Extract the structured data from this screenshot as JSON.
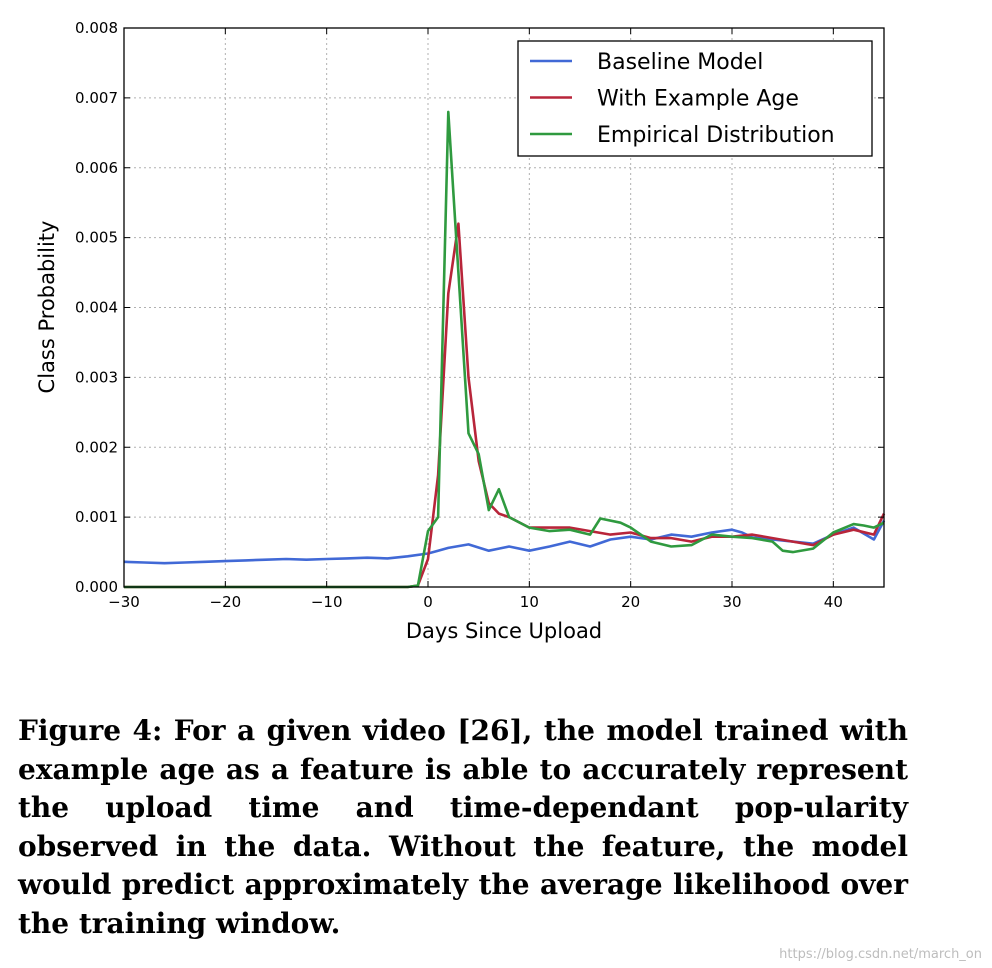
{
  "chart_data": {
    "type": "line",
    "title": "",
    "xlabel": "Days Since Upload",
    "ylabel": "Class Probability",
    "xlim": [
      -30,
      45
    ],
    "ylim": [
      0,
      0.008
    ],
    "xticks": [
      -30,
      -20,
      -10,
      0,
      10,
      20,
      30,
      40
    ],
    "xtick_labels": [
      "−30",
      "−20",
      "−10",
      "0",
      "10",
      "20",
      "30",
      "40"
    ],
    "yticks": [
      0,
      0.001,
      0.002,
      0.003,
      0.004,
      0.005,
      0.006,
      0.007,
      0.008
    ],
    "ytick_labels": [
      "0.000",
      "0.001",
      "0.002",
      "0.003",
      "0.004",
      "0.005",
      "0.006",
      "0.007",
      "0.008"
    ],
    "grid": true,
    "legend_position": "top-right",
    "series": [
      {
        "name": "Baseline Model",
        "color": "#4169d6",
        "x": [
          -30,
          -28,
          -26,
          -24,
          -22,
          -20,
          -18,
          -16,
          -14,
          -12,
          -10,
          -8,
          -6,
          -4,
          -2,
          0,
          1,
          2,
          4,
          6,
          7,
          8,
          10,
          12,
          14,
          16,
          18,
          20,
          22,
          24,
          26,
          28,
          30,
          31,
          32,
          34,
          36,
          38,
          40,
          42,
          44,
          45
        ],
        "y": [
          0.00036,
          0.00035,
          0.00034,
          0.00035,
          0.00036,
          0.00037,
          0.00038,
          0.00039,
          0.0004,
          0.00039,
          0.0004,
          0.00041,
          0.00042,
          0.00041,
          0.00044,
          0.00048,
          0.00052,
          0.00056,
          0.00061,
          0.00052,
          0.00055,
          0.00058,
          0.00052,
          0.00058,
          0.00065,
          0.00058,
          0.00068,
          0.00072,
          0.00068,
          0.00075,
          0.00072,
          0.00078,
          0.00082,
          0.00078,
          0.00071,
          0.00068,
          0.00065,
          0.00062,
          0.00075,
          0.00085,
          0.00068,
          0.00095
        ]
      },
      {
        "name": "With Example Age",
        "color": "#b8253a",
        "x": [
          -30,
          -25,
          -20,
          -15,
          -10,
          -5,
          -2,
          -1,
          0,
          1,
          2,
          3,
          4,
          5,
          6,
          7,
          8,
          10,
          12,
          14,
          16,
          18,
          20,
          22,
          24,
          26,
          28,
          30,
          32,
          34,
          36,
          38,
          40,
          42,
          44,
          45
        ],
        "y": [
          0,
          0,
          0,
          0,
          0,
          0,
          0,
          2e-05,
          0.0004,
          0.0016,
          0.0042,
          0.0052,
          0.003,
          0.0018,
          0.0012,
          0.00105,
          0.001,
          0.00085,
          0.00085,
          0.00085,
          0.0008,
          0.00075,
          0.00078,
          0.0007,
          0.0007,
          0.00065,
          0.00072,
          0.00072,
          0.00075,
          0.0007,
          0.00065,
          0.0006,
          0.00075,
          0.00082,
          0.00075,
          0.00105
        ]
      },
      {
        "name": "Empirical Distribution",
        "color": "#2f9a3f",
        "x": [
          -30,
          -25,
          -20,
          -15,
          -10,
          -5,
          -2,
          -1,
          0,
          1,
          2,
          3,
          4,
          5,
          6,
          7,
          8,
          10,
          12,
          14,
          16,
          17,
          19,
          20,
          22,
          24,
          26,
          28,
          30,
          32,
          34,
          35,
          36,
          38,
          40,
          42,
          43,
          44,
          45
        ],
        "y": [
          0,
          0,
          0,
          0,
          0,
          0,
          0,
          2e-05,
          0.0008,
          0.001,
          0.0068,
          0.0045,
          0.0022,
          0.0019,
          0.0011,
          0.0014,
          0.001,
          0.00085,
          0.0008,
          0.00082,
          0.00075,
          0.00098,
          0.00092,
          0.00085,
          0.00065,
          0.00058,
          0.0006,
          0.00075,
          0.00072,
          0.0007,
          0.00065,
          0.00052,
          0.0005,
          0.00055,
          0.00078,
          0.0009,
          0.00088,
          0.00085,
          0.00092
        ]
      }
    ]
  },
  "caption": "Figure 4: For a given video [26], the model trained with example age as a feature is able to accurately represent the upload time and time-dependant pop-ularity observed in the data. Without the feature, the model would predict approximately the average likelihood over the training window.",
  "watermark": "https://blog.csdn.net/march_on"
}
